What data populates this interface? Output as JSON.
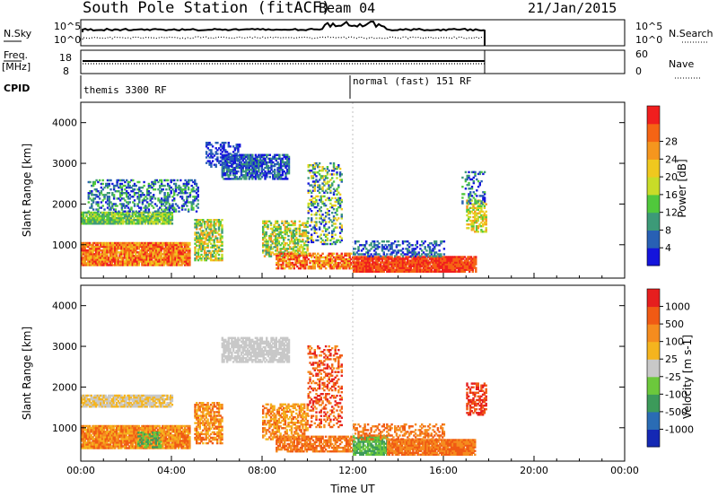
{
  "header": {
    "title": "South Pole Station (fitACF)",
    "beam": "Beam 04",
    "date": "21/Jan/2015"
  },
  "summary": {
    "nsky_label": "N.Sky",
    "nsearch_label": "N.Search",
    "noise_ticks": [
      "10^5",
      "10^0"
    ],
    "freq_label": "Freq.",
    "freq_unit": "[MHz]",
    "freq_ticks": [
      "18",
      "8"
    ],
    "nave_label": "Nave",
    "nave_ticks": [
      "60",
      "0"
    ],
    "cpid_label": "CPID",
    "cpid_modes": [
      {
        "name": "themis 3300 RF",
        "start_ut": 0
      },
      {
        "name": "normal (fast) 151 RF",
        "start_ut": 12
      }
    ]
  },
  "colors": {
    "power": [
      "#1414dc",
      "#2860b4",
      "#3c9a78",
      "#50c83c",
      "#c8dc28",
      "#f0c81e",
      "#f5961e",
      "#f56414",
      "#f01e1e"
    ],
    "velocity": [
      "#1428b4",
      "#2a6cb4",
      "#3c9a5a",
      "#6cc83c",
      "#c8c8c8",
      "#f5b41e",
      "#f58c1e",
      "#f05a14",
      "#e61e1e"
    ]
  },
  "chart_data": [
    {
      "type": "heatmap",
      "panel": "power",
      "xlabel": "Time UT",
      "ylabel": "Slant Range [km]",
      "colorbar_label": "Power [dB]",
      "colorbar_ticks": [
        "4",
        "8",
        "12",
        "16",
        "20",
        "24",
        "28"
      ],
      "xlim": [
        0,
        24
      ],
      "ylim": [
        180,
        4500
      ],
      "x_ticks": [
        "00:00",
        "04:00",
        "08:00",
        "12:00",
        "16:00",
        "20:00",
        "00:00"
      ],
      "y_ticks": [
        "1000",
        "2000",
        "3000",
        "4000"
      ],
      "blobs": [
        {
          "t0": 0.0,
          "t1": 4.8,
          "r0": 480,
          "r1": 1050,
          "levels": [
            5,
            8
          ],
          "density": 0.95
        },
        {
          "t0": 0.0,
          "t1": 4.0,
          "r0": 1500,
          "r1": 1800,
          "levels": [
            2,
            4
          ],
          "density": 0.9
        },
        {
          "t0": 0.3,
          "t1": 5.2,
          "r0": 1800,
          "r1": 2600,
          "levels": [
            0,
            3
          ],
          "density": 0.4
        },
        {
          "t0": 5.0,
          "t1": 6.2,
          "r0": 600,
          "r1": 1600,
          "levels": [
            2,
            6
          ],
          "density": 0.65
        },
        {
          "t0": 6.2,
          "t1": 9.2,
          "r0": 2600,
          "r1": 3200,
          "levels": [
            0,
            2
          ],
          "density": 0.75
        },
        {
          "t0": 5.5,
          "t1": 7.0,
          "r0": 2900,
          "r1": 3500,
          "levels": [
            0,
            1
          ],
          "density": 0.4
        },
        {
          "t0": 8.0,
          "t1": 10.0,
          "r0": 700,
          "r1": 1600,
          "levels": [
            2,
            6
          ],
          "density": 0.55
        },
        {
          "t0": 8.6,
          "t1": 12.0,
          "r0": 400,
          "r1": 800,
          "levels": [
            5,
            8
          ],
          "density": 0.75
        },
        {
          "t0": 10.0,
          "t1": 11.5,
          "r0": 1000,
          "r1": 3000,
          "levels": [
            0,
            5
          ],
          "density": 0.35
        },
        {
          "t0": 12.0,
          "t1": 17.4,
          "r0": 320,
          "r1": 720,
          "levels": [
            7,
            8
          ],
          "density": 0.95
        },
        {
          "t0": 12.0,
          "t1": 16.0,
          "r0": 700,
          "r1": 1100,
          "levels": [
            0,
            2
          ],
          "density": 0.4
        },
        {
          "t0": 17.0,
          "t1": 17.9,
          "r0": 1300,
          "r1": 2100,
          "levels": [
            3,
            6
          ],
          "density": 0.55
        },
        {
          "t0": 16.8,
          "t1": 17.8,
          "r0": 2000,
          "r1": 2800,
          "levels": [
            0,
            3
          ],
          "density": 0.3
        }
      ]
    },
    {
      "type": "heatmap",
      "panel": "velocity",
      "xlabel": "Time UT",
      "ylabel": "Slant Range [km]",
      "colorbar_label": "Velocity [m s-1]",
      "colorbar_ticks": [
        "1000",
        "500",
        "100",
        "25",
        "-25",
        "-100",
        "-500",
        "-1000"
      ],
      "xlim": [
        0,
        24
      ],
      "ylim": [
        180,
        4500
      ],
      "x_ticks": [
        "00:00",
        "04:00",
        "08:00",
        "12:00",
        "16:00",
        "20:00",
        "00:00"
      ],
      "y_ticks": [
        "1000",
        "2000",
        "3000",
        "4000"
      ],
      "blobs": [
        {
          "t0": 0.0,
          "t1": 4.8,
          "r0": 480,
          "r1": 1050,
          "levels": [
            5,
            7
          ],
          "density": 0.95
        },
        {
          "t0": 0.0,
          "t1": 4.0,
          "r0": 1500,
          "r1": 1800,
          "levels": [
            4,
            5
          ],
          "density": 0.85
        },
        {
          "t0": 2.5,
          "t1": 3.5,
          "r0": 500,
          "r1": 900,
          "levels": [
            2,
            3
          ],
          "density": 0.5
        },
        {
          "t0": 5.0,
          "t1": 6.2,
          "r0": 600,
          "r1": 1600,
          "levels": [
            5,
            7
          ],
          "density": 0.65
        },
        {
          "t0": 6.2,
          "t1": 9.2,
          "r0": 2600,
          "r1": 3200,
          "levels": [
            4,
            4
          ],
          "density": 0.75
        },
        {
          "t0": 8.0,
          "t1": 10.0,
          "r0": 700,
          "r1": 1600,
          "levels": [
            5,
            7
          ],
          "density": 0.55
        },
        {
          "t0": 8.6,
          "t1": 12.0,
          "r0": 400,
          "r1": 800,
          "levels": [
            6,
            7
          ],
          "density": 0.75
        },
        {
          "t0": 10.0,
          "t1": 11.5,
          "r0": 1000,
          "r1": 3000,
          "levels": [
            6,
            8
          ],
          "density": 0.35
        },
        {
          "t0": 12.0,
          "t1": 13.5,
          "r0": 320,
          "r1": 800,
          "levels": [
            2,
            3
          ],
          "density": 0.85
        },
        {
          "t0": 13.5,
          "t1": 17.4,
          "r0": 320,
          "r1": 720,
          "levels": [
            6,
            7
          ],
          "density": 0.95
        },
        {
          "t0": 12.0,
          "t1": 16.0,
          "r0": 700,
          "r1": 1100,
          "levels": [
            6,
            7
          ],
          "density": 0.4
        },
        {
          "t0": 17.0,
          "t1": 17.9,
          "r0": 1300,
          "r1": 2100,
          "levels": [
            7,
            8
          ],
          "density": 0.55
        }
      ]
    }
  ]
}
